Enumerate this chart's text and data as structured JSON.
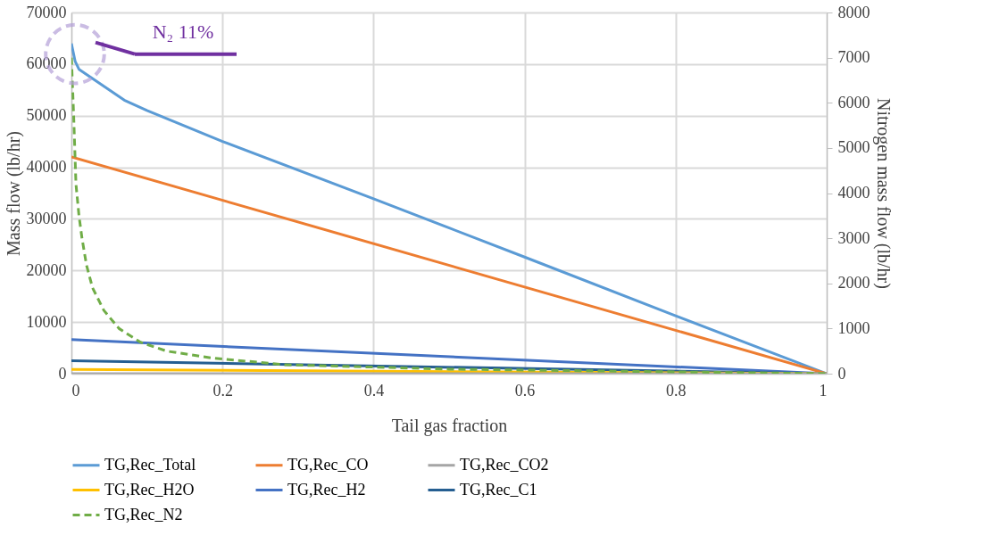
{
  "chart_data": {
    "type": "line",
    "xlabel": "Tail gas fraction",
    "ylabel": "Mass flow (lb/hr)",
    "y2label": "Nitrogen mass flow (lb/hr)",
    "xlim": [
      0,
      1
    ],
    "xticks": [
      0,
      0.2,
      0.4,
      0.6,
      0.8,
      1
    ],
    "ylim": [
      0,
      70000
    ],
    "yticks": [
      0,
      10000,
      20000,
      30000,
      40000,
      50000,
      60000,
      70000
    ],
    "y2lim": [
      0,
      8000
    ],
    "y2ticks": [
      0,
      1000,
      2000,
      3000,
      4000,
      5000,
      6000,
      7000,
      8000
    ],
    "grid": true,
    "legend": "bottom",
    "annotations": [
      "N₂ 11%"
    ],
    "series": [
      {
        "name": "TG,Rec_Total",
        "color": "#5b9bd5",
        "x": [
          0,
          0.005,
          0.01,
          0.03,
          0.07,
          0.1,
          0.2,
          0.4,
          0.6,
          0.8,
          1
        ],
        "values": [
          64000,
          60500,
          59000,
          57000,
          53000,
          51000,
          45000,
          33900,
          22600,
          11200,
          0
        ]
      },
      {
        "name": "TG,Rec_CO",
        "color": "#ed7d31",
        "x": [
          0,
          1
        ],
        "values": [
          42000,
          0
        ]
      },
      {
        "name": "TG,Rec_CO2",
        "color": "#a5a5a5",
        "x": [
          0,
          1
        ],
        "values": [
          0,
          0
        ]
      },
      {
        "name": "TG,Rec_H2O",
        "color": "#ffc000",
        "x": [
          0,
          1
        ],
        "values": [
          800,
          0
        ]
      },
      {
        "name": "TG,Rec_H2",
        "color": "#4472c4",
        "x": [
          0,
          1
        ],
        "values": [
          6600,
          0
        ]
      },
      {
        "name": "TG,Rec_C1",
        "color": "#255e91",
        "x": [
          0,
          1
        ],
        "values": [
          2500,
          0
        ]
      },
      {
        "name": "TG,Rec_N2",
        "color": "#70ad47",
        "axis": "y2",
        "line_style": "dashed",
        "x": [
          0,
          0.003,
          0.006,
          0.01,
          0.014,
          0.02,
          0.028,
          0.043,
          0.063,
          0.091,
          0.126,
          0.185,
          0.28,
          0.5,
          0.8,
          1
        ],
        "values": [
          7000,
          5700,
          4200,
          3500,
          3000,
          2400,
          1900,
          1400,
          1000,
          700,
          500,
          350,
          200,
          100,
          40,
          0
        ]
      }
    ]
  }
}
